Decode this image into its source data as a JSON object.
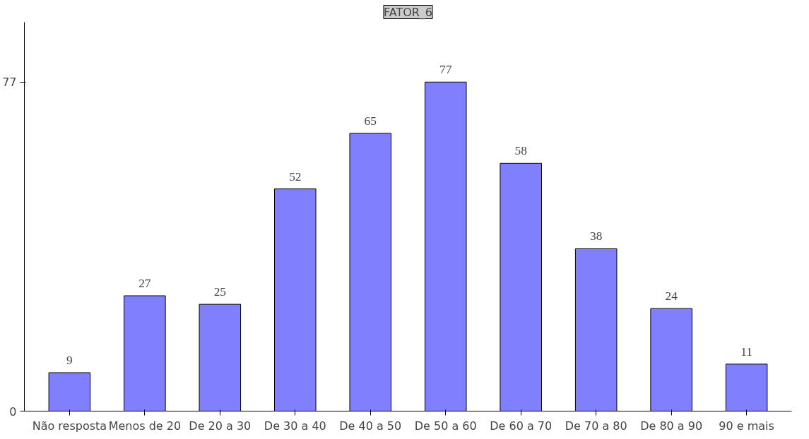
{
  "chart_data": {
    "type": "bar",
    "title": "FATOR_6",
    "categories": [
      "Não resposta",
      "Menos de 20",
      "De 20 a 30",
      "De 30 a 40",
      "De 40 a 50",
      "De 50 a 60",
      "De 60 a 70",
      "De 70 a 80",
      "De 80 a 90",
      "90 e mais"
    ],
    "values": [
      9,
      27,
      25,
      52,
      65,
      77,
      58,
      38,
      24,
      11
    ],
    "color": "#8080ff",
    "ylim": [
      0,
      91
    ],
    "yticks": [
      0,
      77
    ],
    "data_labels": true,
    "grid": false
  }
}
